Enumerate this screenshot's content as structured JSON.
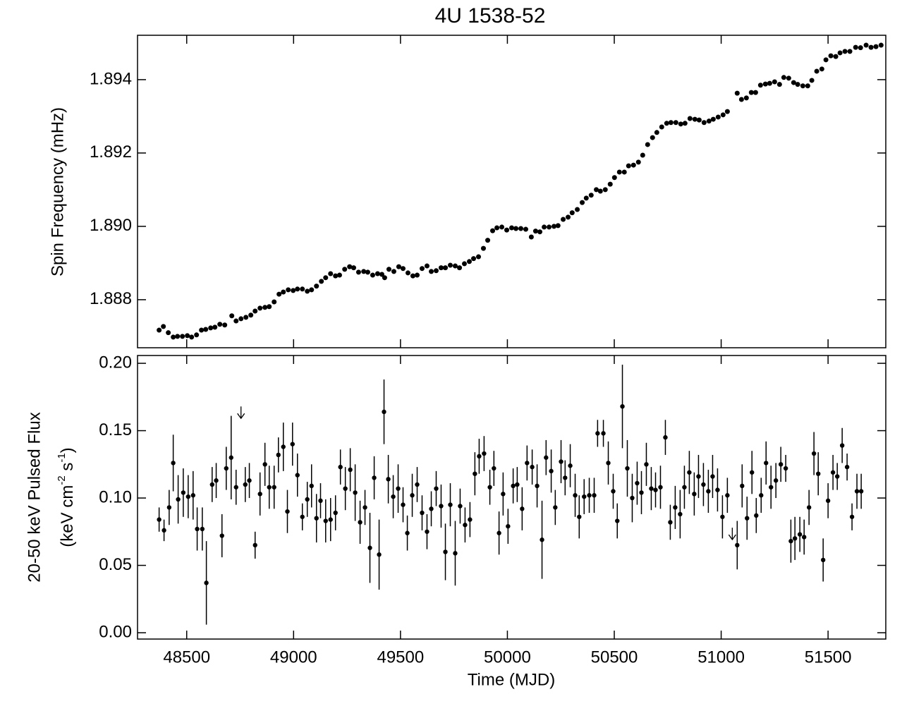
{
  "chart_data": [
    {
      "type": "scatter",
      "title": "4U 1538-52",
      "ylabel": "Spin Frequency (mHz)",
      "color": "#000000",
      "xlim": [
        48270,
        51770
      ],
      "ylim": [
        1.88669,
        1.89521
      ],
      "yticks": [
        1.888,
        {
          "value": 1.89,
          "label": "1.890"
        },
        1.892,
        1.894
      ],
      "x": [
        48371,
        48391,
        48414,
        48437,
        48457,
        48480,
        48503,
        48523,
        48546,
        48569,
        48589,
        48612,
        48632,
        48655,
        48678,
        48711,
        48731,
        48754,
        48777,
        48800,
        48820,
        48843,
        48866,
        48886,
        48909,
        48932,
        48952,
        48975,
        48998,
        49018,
        49041,
        49064,
        49084,
        49107,
        49130,
        49150,
        49173,
        49196,
        49215,
        49239,
        49262,
        49281,
        49304,
        49328,
        49347,
        49370,
        49393,
        49413,
        49426,
        49446,
        49469,
        49492,
        49512,
        49535,
        49558,
        49578,
        49601,
        49624,
        49644,
        49667,
        49690,
        49710,
        49733,
        49756,
        49776,
        49799,
        49822,
        49842,
        49865,
        49888,
        49908,
        49931,
        49951,
        49974,
        49997,
        50020,
        50040,
        50063,
        50086,
        50112,
        50132,
        50152,
        50172,
        50195,
        50218,
        50237,
        50261,
        50284,
        50303,
        50327,
        50350,
        50369,
        50392,
        50416,
        50435,
        50458,
        50481,
        50501,
        50524,
        50547,
        50567,
        50590,
        50613,
        50633,
        50656,
        50679,
        50699,
        50722,
        50745,
        50765,
        50788,
        50811,
        50831,
        50854,
        50877,
        50897,
        50920,
        50943,
        50963,
        50986,
        51009,
        51029,
        51075,
        51095,
        51118,
        51141,
        51161,
        51184,
        51207,
        51227,
        51250,
        51273,
        51293,
        51316,
        51339,
        51358,
        51382,
        51405,
        51424,
        51447,
        51471,
        51490,
        51513,
        51536,
        51556,
        51579,
        51602,
        51629,
        51652,
        51678,
        51701,
        51724,
        51748
      ],
      "values": [
        1.88717,
        1.88727,
        1.8871,
        1.88698,
        1.887,
        1.887,
        1.88702,
        1.88698,
        1.88704,
        1.88717,
        1.88719,
        1.88723,
        1.88725,
        1.88733,
        1.88731,
        1.88756,
        1.88742,
        1.88748,
        1.88752,
        1.88758,
        1.88769,
        1.88777,
        1.88779,
        1.88781,
        1.88794,
        1.88815,
        1.88821,
        1.88827,
        1.88825,
        1.88829,
        1.88829,
        1.88823,
        1.88827,
        1.88837,
        1.8885,
        1.8886,
        1.88871,
        1.88865,
        1.88867,
        1.88883,
        1.8889,
        1.88887,
        1.88875,
        1.88877,
        1.88875,
        1.88867,
        1.88871,
        1.88869,
        1.8886,
        1.88883,
        1.88877,
        1.8889,
        1.88885,
        1.88873,
        1.88865,
        1.88867,
        1.88885,
        1.88892,
        1.88877,
        1.88879,
        1.88887,
        1.88887,
        1.88894,
        1.88892,
        1.88887,
        1.88898,
        1.88904,
        1.88912,
        1.88917,
        1.8894,
        1.88962,
        1.88988,
        1.88996,
        1.88998,
        1.8899,
        1.88996,
        1.88994,
        1.88994,
        1.88992,
        1.88971,
        1.88987,
        1.88985,
        1.88998,
        1.88998,
        1.89,
        1.89002,
        1.89019,
        1.89025,
        1.89037,
        1.89046,
        1.89065,
        1.89077,
        1.89085,
        1.891,
        1.89096,
        1.891,
        1.89115,
        1.89133,
        1.89148,
        1.89148,
        1.89165,
        1.89167,
        1.89175,
        1.89194,
        1.89223,
        1.89242,
        1.89256,
        1.89271,
        1.89281,
        1.89283,
        1.89283,
        1.89279,
        1.89281,
        1.89294,
        1.89292,
        1.8929,
        1.89283,
        1.89287,
        1.89292,
        1.89298,
        1.89304,
        1.89313,
        1.89363,
        1.89346,
        1.8935,
        1.89365,
        1.89365,
        1.89385,
        1.89388,
        1.8939,
        1.89394,
        1.89387,
        1.89406,
        1.89404,
        1.89392,
        1.89387,
        1.89383,
        1.89383,
        1.89398,
        1.89423,
        1.89429,
        1.89454,
        1.89465,
        1.89463,
        1.89473,
        1.89477,
        1.89477,
        1.89488,
        1.89487,
        1.89494,
        1.89488,
        1.8949,
        1.89494
      ]
    },
    {
      "type": "errorbar",
      "xlabel": "Time (MJD)",
      "ylabel": "20-50 keV Pulsed Flux",
      "ylabel_units": [
        "(keV cm",
        "-2",
        " s",
        "-1",
        ")"
      ],
      "color": "#000000",
      "xlim": [
        48270,
        51770
      ],
      "ylim": [
        -0.0047,
        0.2058
      ],
      "xticks": [
        48500,
        49000,
        49500,
        50000,
        50500,
        51000,
        51500
      ],
      "yticks": [
        {
          "value": 0,
          "label": "0.00"
        },
        {
          "value": 0.05,
          "label": "0.05"
        },
        {
          "value": 0.1,
          "label": "0.10"
        },
        {
          "value": 0.15,
          "label": "0.15"
        },
        {
          "value": 0.2,
          "label": "0.20"
        }
      ],
      "x": [
        48371,
        48394,
        48418,
        48437,
        48460,
        48484,
        48507,
        48530,
        48549,
        48573,
        48592,
        48619,
        48638,
        48665,
        48685,
        48708,
        48731,
        48774,
        48793,
        48820,
        48843,
        48866,
        48886,
        48909,
        48929,
        48952,
        48971,
        48995,
        49018,
        49041,
        49064,
        49084,
        49107,
        49126,
        49150,
        49173,
        49196,
        49219,
        49242,
        49265,
        49288,
        49311,
        49334,
        49357,
        49377,
        49400,
        49423,
        49443,
        49466,
        49489,
        49512,
        49532,
        49555,
        49578,
        49601,
        49624,
        49644,
        49667,
        49690,
        49710,
        49733,
        49756,
        49779,
        49802,
        49825,
        49848,
        49868,
        49891,
        49918,
        49937,
        49961,
        49980,
        50003,
        50027,
        50046,
        50069,
        50092,
        50116,
        50139,
        50162,
        50181,
        50205,
        50224,
        50251,
        50270,
        50294,
        50317,
        50336,
        50359,
        50383,
        50406,
        50422,
        50449,
        50472,
        50495,
        50514,
        50538,
        50561,
        50584,
        50607,
        50627,
        50650,
        50673,
        50693,
        50716,
        50739,
        50762,
        50785,
        50808,
        50828,
        50851,
        50874,
        50894,
        50917,
        50940,
        50960,
        50983,
        51006,
        51029,
        51075,
        51098,
        51121,
        51144,
        51164,
        51187,
        51210,
        51233,
        51256,
        51279,
        51302,
        51326,
        51345,
        51368,
        51388,
        51411,
        51434,
        51454,
        51477,
        51500,
        51523,
        51543,
        51566,
        51589,
        51612,
        51635,
        51655
      ],
      "values": [
        0.084,
        0.076,
        0.093,
        0.126,
        0.099,
        0.104,
        0.101,
        0.102,
        0.077,
        0.077,
        0.037,
        0.11,
        0.113,
        0.072,
        0.122,
        0.13,
        0.108,
        0.11,
        0.113,
        0.065,
        0.103,
        0.125,
        0.108,
        0.108,
        0.132,
        0.138,
        0.09,
        0.14,
        0.117,
        0.086,
        0.099,
        0.109,
        0.085,
        0.098,
        0.083,
        0.084,
        0.089,
        0.123,
        0.107,
        0.121,
        0.104,
        0.082,
        0.093,
        0.063,
        0.115,
        0.058,
        0.164,
        0.114,
        0.101,
        0.107,
        0.095,
        0.074,
        0.102,
        0.11,
        0.089,
        0.075,
        0.092,
        0.107,
        0.094,
        0.06,
        0.095,
        0.059,
        0.094,
        0.08,
        0.084,
        0.118,
        0.131,
        0.133,
        0.108,
        0.122,
        0.074,
        0.103,
        0.079,
        0.109,
        0.11,
        0.092,
        0.126,
        0.123,
        0.109,
        0.069,
        0.13,
        0.12,
        0.093,
        0.127,
        0.115,
        0.124,
        0.102,
        0.086,
        0.101,
        0.102,
        0.102,
        0.148,
        0.148,
        0.126,
        0.105,
        0.083,
        0.168,
        0.122,
        0.1,
        0.111,
        0.104,
        0.125,
        0.107,
        0.106,
        0.108,
        0.145,
        0.082,
        0.093,
        0.088,
        0.108,
        0.119,
        0.103,
        0.116,
        0.11,
        0.105,
        0.116,
        0.106,
        0.086,
        0.102,
        0.065,
        0.109,
        0.085,
        0.119,
        0.087,
        0.102,
        0.126,
        0.108,
        0.113,
        0.125,
        0.122,
        0.068,
        0.07,
        0.073,
        0.071,
        0.093,
        0.133,
        0.118,
        0.054,
        0.098,
        0.119,
        0.116,
        0.139,
        0.123,
        0.086,
        0.105,
        0.105
      ],
      "errors": [
        0.009,
        0.008,
        0.013,
        0.021,
        0.018,
        0.018,
        0.016,
        0.018,
        0.016,
        0.016,
        0.031,
        0.013,
        0.013,
        0.016,
        0.016,
        0.031,
        0.013,
        0.013,
        0.013,
        0.01,
        0.016,
        0.016,
        0.016,
        0.016,
        0.013,
        0.018,
        0.016,
        0.016,
        0.016,
        0.01,
        0.013,
        0.016,
        0.018,
        0.013,
        0.016,
        0.016,
        0.013,
        0.013,
        0.016,
        0.016,
        0.021,
        0.016,
        0.013,
        0.026,
        0.016,
        0.026,
        0.024,
        0.018,
        0.016,
        0.018,
        0.013,
        0.013,
        0.016,
        0.013,
        0.013,
        0.013,
        0.013,
        0.013,
        0.016,
        0.021,
        0.016,
        0.024,
        0.013,
        0.013,
        0.013,
        0.016,
        0.013,
        0.013,
        0.013,
        0.013,
        0.016,
        0.016,
        0.013,
        0.013,
        0.013,
        0.016,
        0.013,
        0.013,
        0.016,
        0.029,
        0.013,
        0.016,
        0.013,
        0.016,
        0.013,
        0.016,
        0.016,
        0.016,
        0.013,
        0.013,
        0.013,
        0.01,
        0.01,
        0.016,
        0.013,
        0.013,
        0.031,
        0.021,
        0.018,
        0.016,
        0.016,
        0.016,
        0.016,
        0.013,
        0.016,
        0.013,
        0.013,
        0.016,
        0.018,
        0.016,
        0.016,
        0.016,
        0.016,
        0.016,
        0.016,
        0.016,
        0.016,
        0.016,
        0.013,
        0.018,
        0.016,
        0.016,
        0.016,
        0.013,
        0.013,
        0.016,
        0.016,
        0.013,
        0.013,
        0.01,
        0.016,
        0.016,
        0.013,
        0.013,
        0.013,
        0.016,
        0.016,
        0.016,
        0.013,
        0.013,
        0.01,
        0.013,
        0.01,
        0.01,
        0.013,
        0.013
      ],
      "upper_limits": {
        "x": [
          48754,
          51052
        ],
        "values": [
          0.168,
          0.078
        ]
      }
    }
  ]
}
